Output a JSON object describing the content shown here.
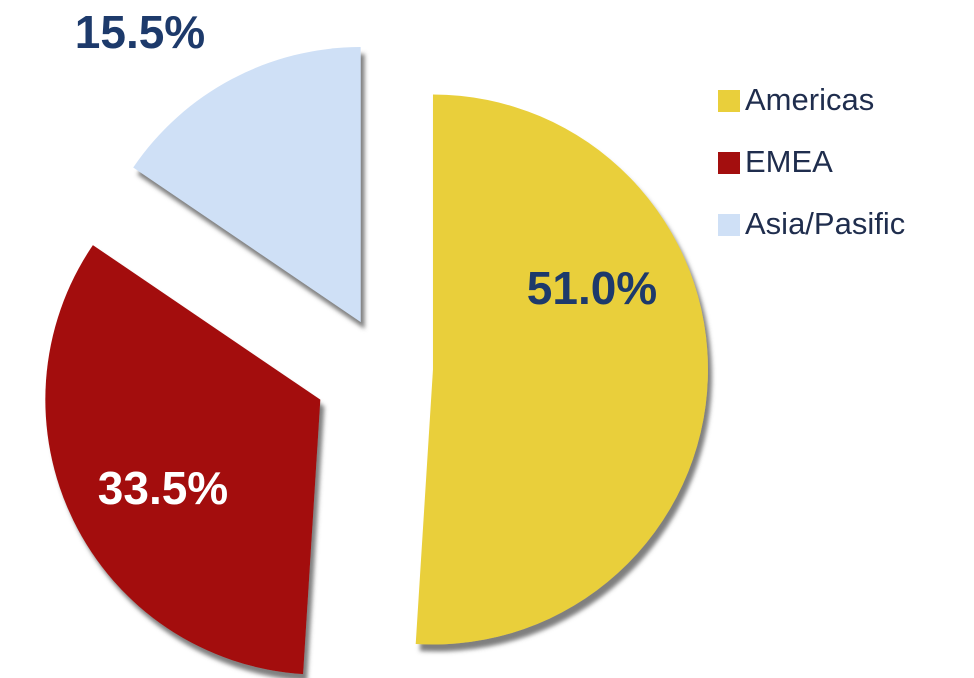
{
  "chart_data": {
    "type": "pie",
    "categories": [
      "Americas",
      "EMEA",
      "Asia/Pasific"
    ],
    "values": [
      51.0,
      33.5,
      15.5
    ],
    "value_labels": [
      "51.0%",
      "33.5%",
      "15.5%"
    ],
    "colors": [
      "#e9cf3b",
      "#a30e0e",
      "#cfe0f6"
    ],
    "label_colors": [
      "#1d3a6b",
      "#ffffff",
      "#1d3a6b"
    ],
    "legend": "upper right"
  }
}
